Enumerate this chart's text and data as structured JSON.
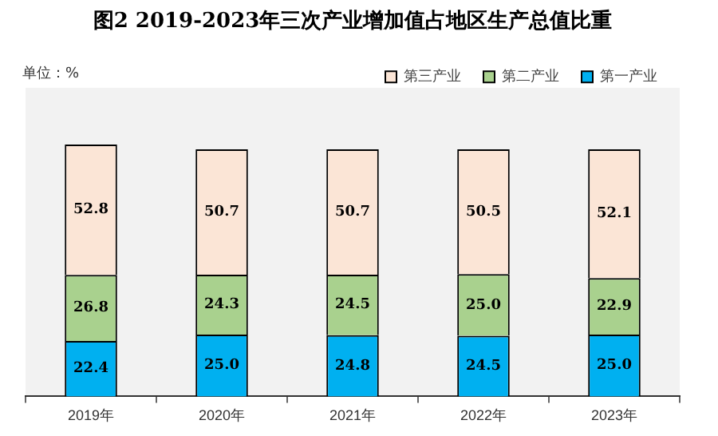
{
  "chart_data": {
    "type": "bar",
    "stacked": true,
    "title": "图2 2019-2023年三次产业增加值占地区生产总值比重",
    "annotations": [
      "单位：%"
    ],
    "categories": [
      "2019年",
      "2020年",
      "2021年",
      "2022年",
      "2023年"
    ],
    "series": [
      {
        "name": "第一产业",
        "color": "#00b0f0",
        "values": [
          22.4,
          25.0,
          24.8,
          24.5,
          25.0
        ],
        "value_labels": [
          "22.4",
          "25.0",
          "24.8",
          "24.5",
          "25.0"
        ]
      },
      {
        "name": "第二产业",
        "color": "#a9d18e",
        "values": [
          26.8,
          24.3,
          24.5,
          25.0,
          22.9
        ],
        "value_labels": [
          "26.8",
          "24.3",
          "24.5",
          "25.0",
          "22.9"
        ]
      },
      {
        "name": "第三产业",
        "color": "#fbe5d6",
        "values": [
          52.8,
          50.7,
          50.7,
          50.5,
          52.1
        ],
        "value_labels": [
          "52.8",
          "50.7",
          "50.7",
          "50.5",
          "52.1"
        ]
      }
    ],
    "legend": "top right",
    "grid": false
  }
}
